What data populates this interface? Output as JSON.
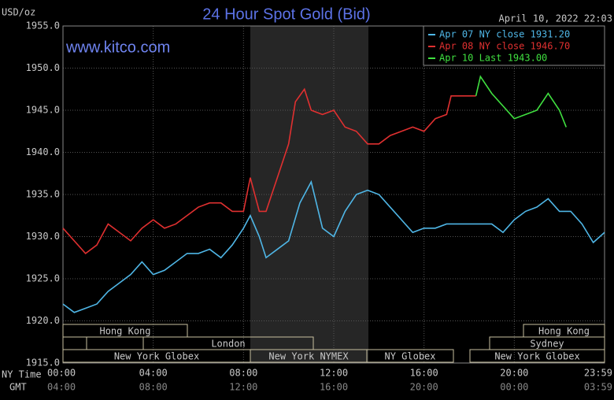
{
  "chart_data": {
    "type": "line",
    "title": "24 Hour Spot Gold (Bid)",
    "subtitle": "April 10, 2022 22:03",
    "watermark": "www.kitco.com",
    "y_label": "USD/oz",
    "x_label": "NY Time",
    "x2_label": "GMT",
    "xlim": [
      0,
      24
    ],
    "xticks": [
      {
        "value": 0,
        "label": "00:00"
      },
      {
        "value": 4,
        "label": "04:00"
      },
      {
        "value": 8,
        "label": "08:00"
      },
      {
        "value": 12,
        "label": "12:00"
      },
      {
        "value": 16,
        "label": "16:00"
      },
      {
        "value": 20,
        "label": "20:00"
      },
      {
        "value": 24,
        "label": "23:59"
      }
    ],
    "x2tick_labels": [
      "04:00",
      "08:00",
      "12:00",
      "16:00",
      "20:00",
      "00:00",
      "03:59"
    ],
    "ylim": [
      1915,
      1955
    ],
    "yticks": [
      {
        "value": 1915,
        "label": "1915.0"
      },
      {
        "value": 1920,
        "label": "1920.0"
      },
      {
        "value": 1925,
        "label": "1925.0"
      },
      {
        "value": 1930,
        "label": "1930.0"
      },
      {
        "value": 1935,
        "label": "1935.0"
      },
      {
        "value": 1940,
        "label": "1940.0"
      },
      {
        "value": 1945,
        "label": "1945.0"
      },
      {
        "value": 1950,
        "label": "1950.0"
      },
      {
        "value": 1955,
        "label": "1955.0"
      }
    ],
    "grid": true,
    "legend": "top-right",
    "sessions": [
      "Hong Kong",
      "London",
      "New York Globex",
      "New York NYMEX",
      "NY Globex",
      "Hong Kong",
      "Sydney",
      "New York Globex"
    ],
    "series": [
      {
        "name": "Apr 07 NY close 1931.20",
        "color": "#4fb6e6",
        "x": [
          0,
          0.5,
          1,
          1.5,
          2,
          2.5,
          3,
          3.5,
          4,
          4.5,
          5,
          5.5,
          6,
          6.5,
          7,
          7.5,
          8,
          8.3,
          8.7,
          9,
          9.5,
          10,
          10.5,
          11,
          11.5,
          12,
          12.5,
          13,
          13.5,
          14,
          14.5,
          15,
          15.5,
          16,
          16.5,
          17,
          18,
          18.5,
          19,
          19.5,
          20,
          20.5,
          21,
          21.5,
          22,
          22.5,
          23,
          23.5,
          24
        ],
        "values": [
          1922,
          1921,
          1921.5,
          1922,
          1923.5,
          1924.5,
          1925.5,
          1927,
          1925.5,
          1926,
          1927,
          1928,
          1928,
          1928.5,
          1927.5,
          1929,
          1931,
          1932.5,
          1930,
          1927.5,
          1928.5,
          1929.5,
          1934,
          1936.5,
          1931,
          1930,
          1933,
          1935,
          1935.5,
          1935,
          1933.5,
          1932,
          1930.5,
          1931,
          1931,
          1931.5,
          1931.5,
          1931.5,
          1931.5,
          1930.5,
          1932,
          1933,
          1933.5,
          1934.5,
          1933,
          1933,
          1931.5,
          1929.3,
          1930.5
        ]
      },
      {
        "name": "Apr 08 NY close 1946.70",
        "color": "#e03030",
        "x": [
          0,
          0.5,
          1,
          1.5,
          2,
          2.5,
          3,
          3.5,
          4,
          4.5,
          5,
          5.5,
          6,
          6.5,
          7,
          7.5,
          8,
          8.3,
          8.7,
          9,
          9.5,
          10,
          10.3,
          10.7,
          11,
          11.5,
          12,
          12.5,
          13,
          13.5,
          14,
          14.5,
          15,
          15.5,
          16,
          16.5,
          17,
          17.2,
          18.3
        ],
        "values": [
          1931,
          1929.5,
          1928,
          1929,
          1931.5,
          1930.5,
          1929.5,
          1931,
          1932,
          1931,
          1931.5,
          1932.5,
          1933.5,
          1934,
          1934,
          1933,
          1933,
          1937,
          1933,
          1933,
          1937,
          1941,
          1946,
          1947.5,
          1945,
          1944.5,
          1945,
          1943,
          1942.5,
          1941,
          1941,
          1942,
          1942.5,
          1943,
          1942.5,
          1944,
          1944.5,
          1946.7,
          1946.7
        ]
      },
      {
        "name": "Apr 10 Last 1943.00",
        "color": "#40e040",
        "x": [
          18.3,
          18.5,
          19,
          19.5,
          20,
          20.5,
          21,
          21.5,
          22,
          22.3
        ],
        "values": [
          1946.7,
          1949,
          1947,
          1945.5,
          1944,
          1944.5,
          1945,
          1947,
          1945,
          1943
        ]
      }
    ]
  }
}
